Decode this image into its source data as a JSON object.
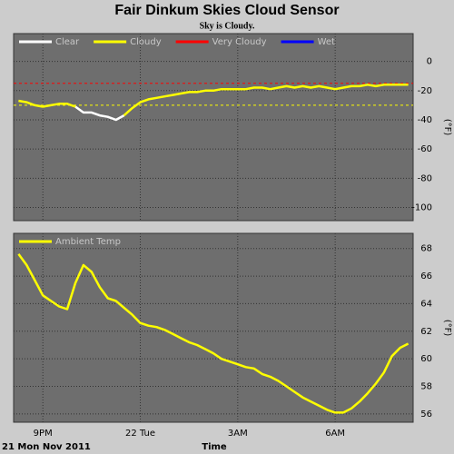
{
  "chart_data": [
    {
      "type": "line",
      "title": "Fair Dinkum Skies Cloud Sensor",
      "subtitle": "Sky is Cloudy.",
      "ylabel": "(°F)",
      "x": [
        20.25,
        20.5,
        20.75,
        21,
        21.25,
        21.5,
        21.75,
        22,
        22.25,
        22.5,
        22.75,
        23,
        23.25,
        23.5,
        23.75,
        24,
        24.25,
        24.5,
        24.75,
        25,
        25.25,
        25.5,
        25.75,
        26,
        26.25,
        26.5,
        26.75,
        27,
        27.25,
        27.5,
        27.75,
        28,
        28.25,
        28.5,
        28.75,
        29,
        29.25,
        29.5,
        29.75,
        30,
        30.25,
        30.5,
        30.75,
        31,
        31.25,
        31.5,
        31.75,
        32,
        32.25
      ],
      "series": [
        {
          "name": "Clear",
          "color": "#ffffff",
          "values": [
            null,
            null,
            null,
            null,
            null,
            null,
            null,
            -31,
            -35,
            -35,
            -37,
            -38,
            -40,
            -37,
            null,
            null,
            null,
            null,
            null,
            null,
            null,
            null,
            null,
            null,
            null,
            null,
            null,
            null,
            null,
            null,
            null,
            null,
            null,
            null,
            null,
            null,
            null,
            null,
            null,
            null,
            null,
            null,
            null,
            null,
            null,
            null,
            null,
            null,
            null
          ]
        },
        {
          "name": "Cloudy",
          "color": "#ffff00",
          "values": [
            -27,
            -28,
            -30,
            -31,
            -30,
            -29,
            -29,
            -31,
            null,
            null,
            null,
            null,
            null,
            -37,
            -32,
            -28,
            -26,
            -25,
            -24,
            -23,
            -22,
            -21,
            -21,
            -20,
            -20,
            -19,
            -19,
            -19,
            -19,
            -18,
            -18,
            -19,
            -18,
            -17,
            -18,
            -17,
            -18,
            -17,
            -18,
            -19,
            -18,
            -17,
            -17,
            -16,
            -17,
            -16,
            -16,
            -16,
            -16
          ]
        },
        {
          "name": "Very Cloudy",
          "color": "#ff0000",
          "values": [
            null,
            null,
            null,
            null,
            null,
            null,
            null,
            null,
            null,
            null,
            null,
            null,
            null,
            null,
            null,
            null,
            null,
            null,
            null,
            null,
            null,
            null,
            null,
            null,
            null,
            null,
            null,
            null,
            null,
            null,
            null,
            null,
            null,
            null,
            null,
            null,
            null,
            null,
            null,
            null,
            null,
            null,
            null,
            null,
            null,
            null,
            null,
            null,
            null
          ]
        },
        {
          "name": "Wet",
          "color": "#0000ff",
          "values": [
            null,
            null,
            null,
            null,
            null,
            null,
            null,
            null,
            null,
            null,
            null,
            null,
            null,
            null,
            null,
            null,
            null,
            null,
            null,
            null,
            null,
            null,
            null,
            null,
            null,
            null,
            null,
            null,
            null,
            null,
            null,
            null,
            null,
            null,
            null,
            null,
            null,
            null,
            null,
            null,
            null,
            null,
            null,
            null,
            null,
            null,
            null,
            null,
            null
          ]
        }
      ],
      "reference_lines": [
        {
          "value": -15,
          "color": "#ff0000"
        },
        {
          "value": -30,
          "color": "#ffff00"
        }
      ],
      "xlim": [
        20.1,
        32.4
      ],
      "xticks": [
        21,
        24,
        27,
        30
      ],
      "ylim": [
        -109,
        19
      ],
      "yticks": [
        0,
        -20,
        -40,
        -60,
        -80,
        -100
      ],
      "grid": true
    },
    {
      "type": "line",
      "ylabel": "(°F)",
      "xlabel": "Time",
      "date_label": "21 Mon Nov 2011",
      "x": [
        20.25,
        20.5,
        20.75,
        21,
        21.25,
        21.5,
        21.75,
        22,
        22.25,
        22.5,
        22.75,
        23,
        23.25,
        23.5,
        23.75,
        24,
        24.25,
        24.5,
        24.75,
        25,
        25.25,
        25.5,
        25.75,
        26,
        26.25,
        26.5,
        26.75,
        27,
        27.25,
        27.5,
        27.75,
        28,
        28.25,
        28.5,
        28.75,
        29,
        29.25,
        29.5,
        29.75,
        30,
        30.25,
        30.5,
        30.75,
        31,
        31.25,
        31.5,
        31.75,
        32,
        32.25
      ],
      "series": [
        {
          "name": "Ambient Temp",
          "color": "#ffff00",
          "values": [
            67.6,
            66.8,
            65.7,
            64.6,
            64.2,
            63.8,
            63.6,
            65.5,
            66.8,
            66.3,
            65.2,
            64.4,
            64.2,
            63.7,
            63.2,
            62.6,
            62.4,
            62.3,
            62.1,
            61.8,
            61.5,
            61.2,
            61.0,
            60.7,
            60.4,
            60.0,
            59.8,
            59.6,
            59.4,
            59.3,
            58.9,
            58.7,
            58.4,
            58.0,
            57.6,
            57.2,
            56.9,
            56.6,
            56.3,
            56.1,
            56.1,
            56.4,
            56.9,
            57.5,
            58.2,
            59.0,
            60.2,
            60.8,
            61.1
          ]
        }
      ],
      "xlim": [
        20.1,
        32.4
      ],
      "xticks": [
        {
          "value": 21,
          "label": "9PM"
        },
        {
          "value": 24,
          "label": "22 Tue"
        },
        {
          "value": 27,
          "label": "3AM"
        },
        {
          "value": 30,
          "label": "6AM"
        }
      ],
      "ylim": [
        55.4,
        69.1
      ],
      "yticks": [
        56,
        58,
        60,
        62,
        64,
        66,
        68
      ],
      "grid": true
    }
  ]
}
